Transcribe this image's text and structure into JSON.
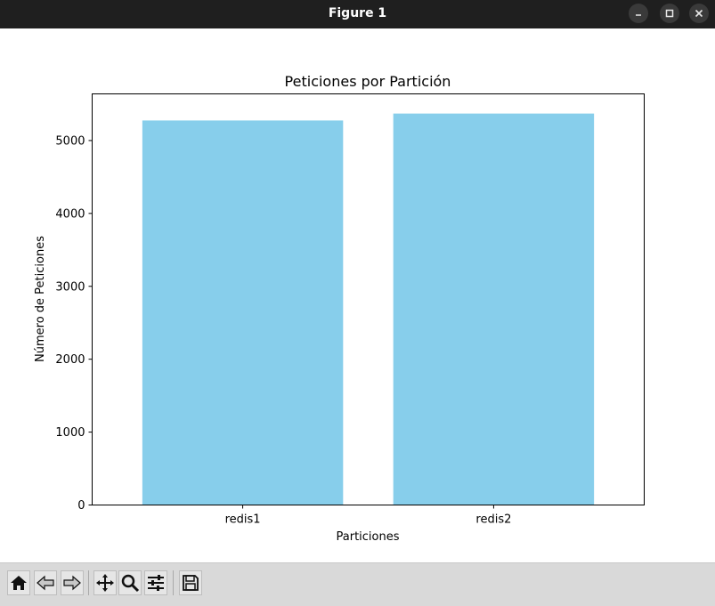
{
  "window": {
    "title": "Figure 1"
  },
  "icons": {
    "minimize": "minimize-icon",
    "maximize": "maximize-icon",
    "close": "close-icon",
    "home": "home-icon",
    "back": "back-arrow-icon",
    "forward": "forward-arrow-icon",
    "pan": "pan-icon",
    "zoom": "zoom-icon",
    "configure": "configure-subplots-icon",
    "save": "save-icon"
  },
  "chart_data": {
    "type": "bar",
    "title": "Peticiones por Partición",
    "xlabel": "Particiones",
    "ylabel": "Número de Peticiones",
    "categories": [
      "redis1",
      "redis2"
    ],
    "values": [
      5275,
      5370
    ],
    "ylim": [
      0,
      5640
    ],
    "yticks": [
      0,
      1000,
      2000,
      3000,
      4000,
      5000
    ],
    "bar_color": "#87ceeb",
    "grid": false,
    "legend": "none"
  }
}
